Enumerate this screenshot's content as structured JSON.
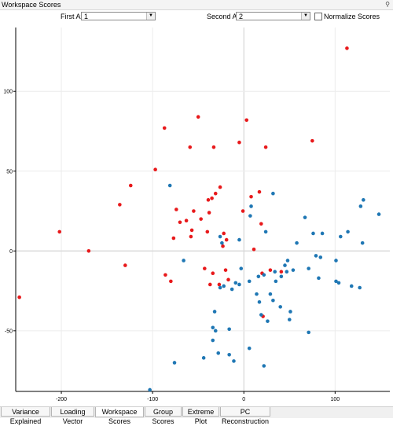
{
  "window": {
    "title": "Workspace Scores",
    "pin_icon": "pin-icon"
  },
  "controls": {
    "first_axis_label": "First Axis",
    "first_axis_value": "1",
    "second_axis_label": "Second Axis",
    "second_axis_value": "2",
    "normalize_label": "Normalize Scores",
    "normalize_checked": false
  },
  "tabs": [
    {
      "label": "Variance Explained",
      "active": false
    },
    {
      "label": "Loading Vector",
      "active": false
    },
    {
      "label": "Workspace Scores",
      "active": true
    },
    {
      "label": "Group Scores",
      "active": false
    },
    {
      "label": "Extreme Plot",
      "active": false
    },
    {
      "label": "PC Reconstruction",
      "active": false
    }
  ],
  "chart_data": {
    "type": "scatter",
    "xlim": [
      -250,
      160
    ],
    "ylim": [
      -88,
      140
    ],
    "x_ticks": [
      -200,
      -100,
      0,
      100
    ],
    "y_ticks": [
      -50,
      0,
      50,
      100
    ],
    "x_tick_labels": [
      "-200",
      "-100",
      "0",
      "100"
    ],
    "y_tick_labels": [
      "-50",
      "0",
      "50",
      "100"
    ],
    "grid": true,
    "series": [
      {
        "color": "#e8191b",
        "points": [
          [
            113,
            127
          ],
          [
            -50,
            84
          ],
          [
            3,
            82
          ],
          [
            -87,
            77
          ],
          [
            -5,
            68
          ],
          [
            75,
            69
          ],
          [
            -59,
            65
          ],
          [
            -33,
            65
          ],
          [
            24,
            65
          ],
          [
            -97,
            51
          ],
          [
            -124,
            41
          ],
          [
            -31,
            36
          ],
          [
            -26,
            40
          ],
          [
            17,
            37
          ],
          [
            -35,
            33
          ],
          [
            -39,
            32
          ],
          [
            8,
            34
          ],
          [
            -136,
            29
          ],
          [
            -74,
            26
          ],
          [
            -55,
            25
          ],
          [
            -38,
            24
          ],
          [
            -1,
            25
          ],
          [
            -63,
            19
          ],
          [
            -70,
            18
          ],
          [
            -47,
            20
          ],
          [
            -57,
            13
          ],
          [
            -77,
            8
          ],
          [
            -58,
            9
          ],
          [
            -40,
            12
          ],
          [
            19,
            17
          ],
          [
            -22,
            11
          ],
          [
            -202,
            12
          ],
          [
            -170,
            0
          ],
          [
            -19,
            7
          ],
          [
            -23,
            3
          ],
          [
            11,
            1
          ],
          [
            -130,
            -9
          ],
          [
            -43,
            -11
          ],
          [
            -34,
            -14
          ],
          [
            -20,
            -12
          ],
          [
            29,
            -12
          ],
          [
            -86,
            -15
          ],
          [
            -80,
            -19
          ],
          [
            -37,
            -21
          ],
          [
            -17,
            -18
          ],
          [
            -27,
            -21
          ],
          [
            20,
            -14
          ],
          [
            41,
            -13
          ],
          [
            21,
            -41
          ],
          [
            -246,
            -29
          ]
        ]
      },
      {
        "color": "#1f77b4",
        "points": [
          [
            -81,
            41
          ],
          [
            32,
            36
          ],
          [
            131,
            32
          ],
          [
            148,
            23
          ],
          [
            128,
            28
          ],
          [
            8,
            28
          ],
          [
            7,
            22
          ],
          [
            67,
            21
          ],
          [
            114,
            12
          ],
          [
            76,
            11
          ],
          [
            86,
            11
          ],
          [
            106,
            9
          ],
          [
            130,
            5
          ],
          [
            -26,
            9
          ],
          [
            24,
            12
          ],
          [
            -24,
            5
          ],
          [
            58,
            5
          ],
          [
            -5,
            7
          ],
          [
            -66,
            -6
          ],
          [
            48,
            -6
          ],
          [
            79,
            -3
          ],
          [
            84,
            -4
          ],
          [
            101,
            -6
          ],
          [
            16,
            -16
          ],
          [
            -3,
            -11
          ],
          [
            22,
            -15
          ],
          [
            -9,
            -20
          ],
          [
            -26,
            -23
          ],
          [
            -22,
            -22
          ],
          [
            35,
            -19
          ],
          [
            6,
            -19
          ],
          [
            29,
            -27
          ],
          [
            41,
            -16
          ],
          [
            45,
            -9
          ],
          [
            47,
            -13
          ],
          [
            54,
            -12
          ],
          [
            -5,
            -21
          ],
          [
            34,
            -13
          ],
          [
            82,
            -17
          ],
          [
            71,
            -11
          ],
          [
            104,
            -20
          ],
          [
            101,
            -19
          ],
          [
            118,
            -22
          ],
          [
            127,
            -23
          ],
          [
            14,
            -27
          ],
          [
            17,
            -32
          ],
          [
            51,
            -38
          ],
          [
            32,
            -31
          ],
          [
            40,
            -35
          ],
          [
            -13,
            -24
          ],
          [
            50,
            -43
          ],
          [
            -32,
            -38
          ],
          [
            -34,
            -48
          ],
          [
            -31,
            -50
          ],
          [
            -16,
            -49
          ],
          [
            19,
            -40
          ],
          [
            26,
            -44
          ],
          [
            -34,
            -56
          ],
          [
            -28,
            -64
          ],
          [
            -16,
            -65
          ],
          [
            71,
            -51
          ],
          [
            6,
            -61
          ],
          [
            -11,
            -69
          ],
          [
            -44,
            -67
          ],
          [
            22,
            -72
          ],
          [
            -76,
            -70
          ],
          [
            -103,
            -87
          ]
        ]
      }
    ]
  }
}
